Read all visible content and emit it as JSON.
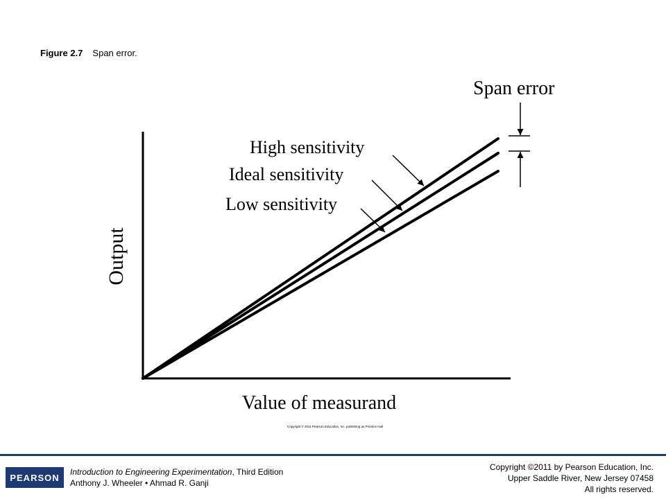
{
  "caption": {
    "number": "Figure 2.7",
    "text": "Span error."
  },
  "figure": {
    "y_axis_label": "Output",
    "x_axis_label": "Value of measurand",
    "lines": [
      {
        "label": "High sensitivity"
      },
      {
        "label": "Ideal sensitivity"
      },
      {
        "label": "Low sensitivity"
      }
    ],
    "annotation": "Span error",
    "image_copyright": "Copyright © 2011 Pearson Education, Inc. publishing as Prentice Hall"
  },
  "footer": {
    "logo": "PEARSON",
    "book_title": "Introduction to Engineering Experimentation",
    "book_edition": ", Third Edition",
    "authors": "Anthony J. Wheeler • Ahmad R. Ganji",
    "copyright_lines": [
      "Copyright ©2011 by Pearson Education, Inc.",
      "Upper Saddle River, New Jersey 07458",
      "All rights reserved."
    ]
  }
}
